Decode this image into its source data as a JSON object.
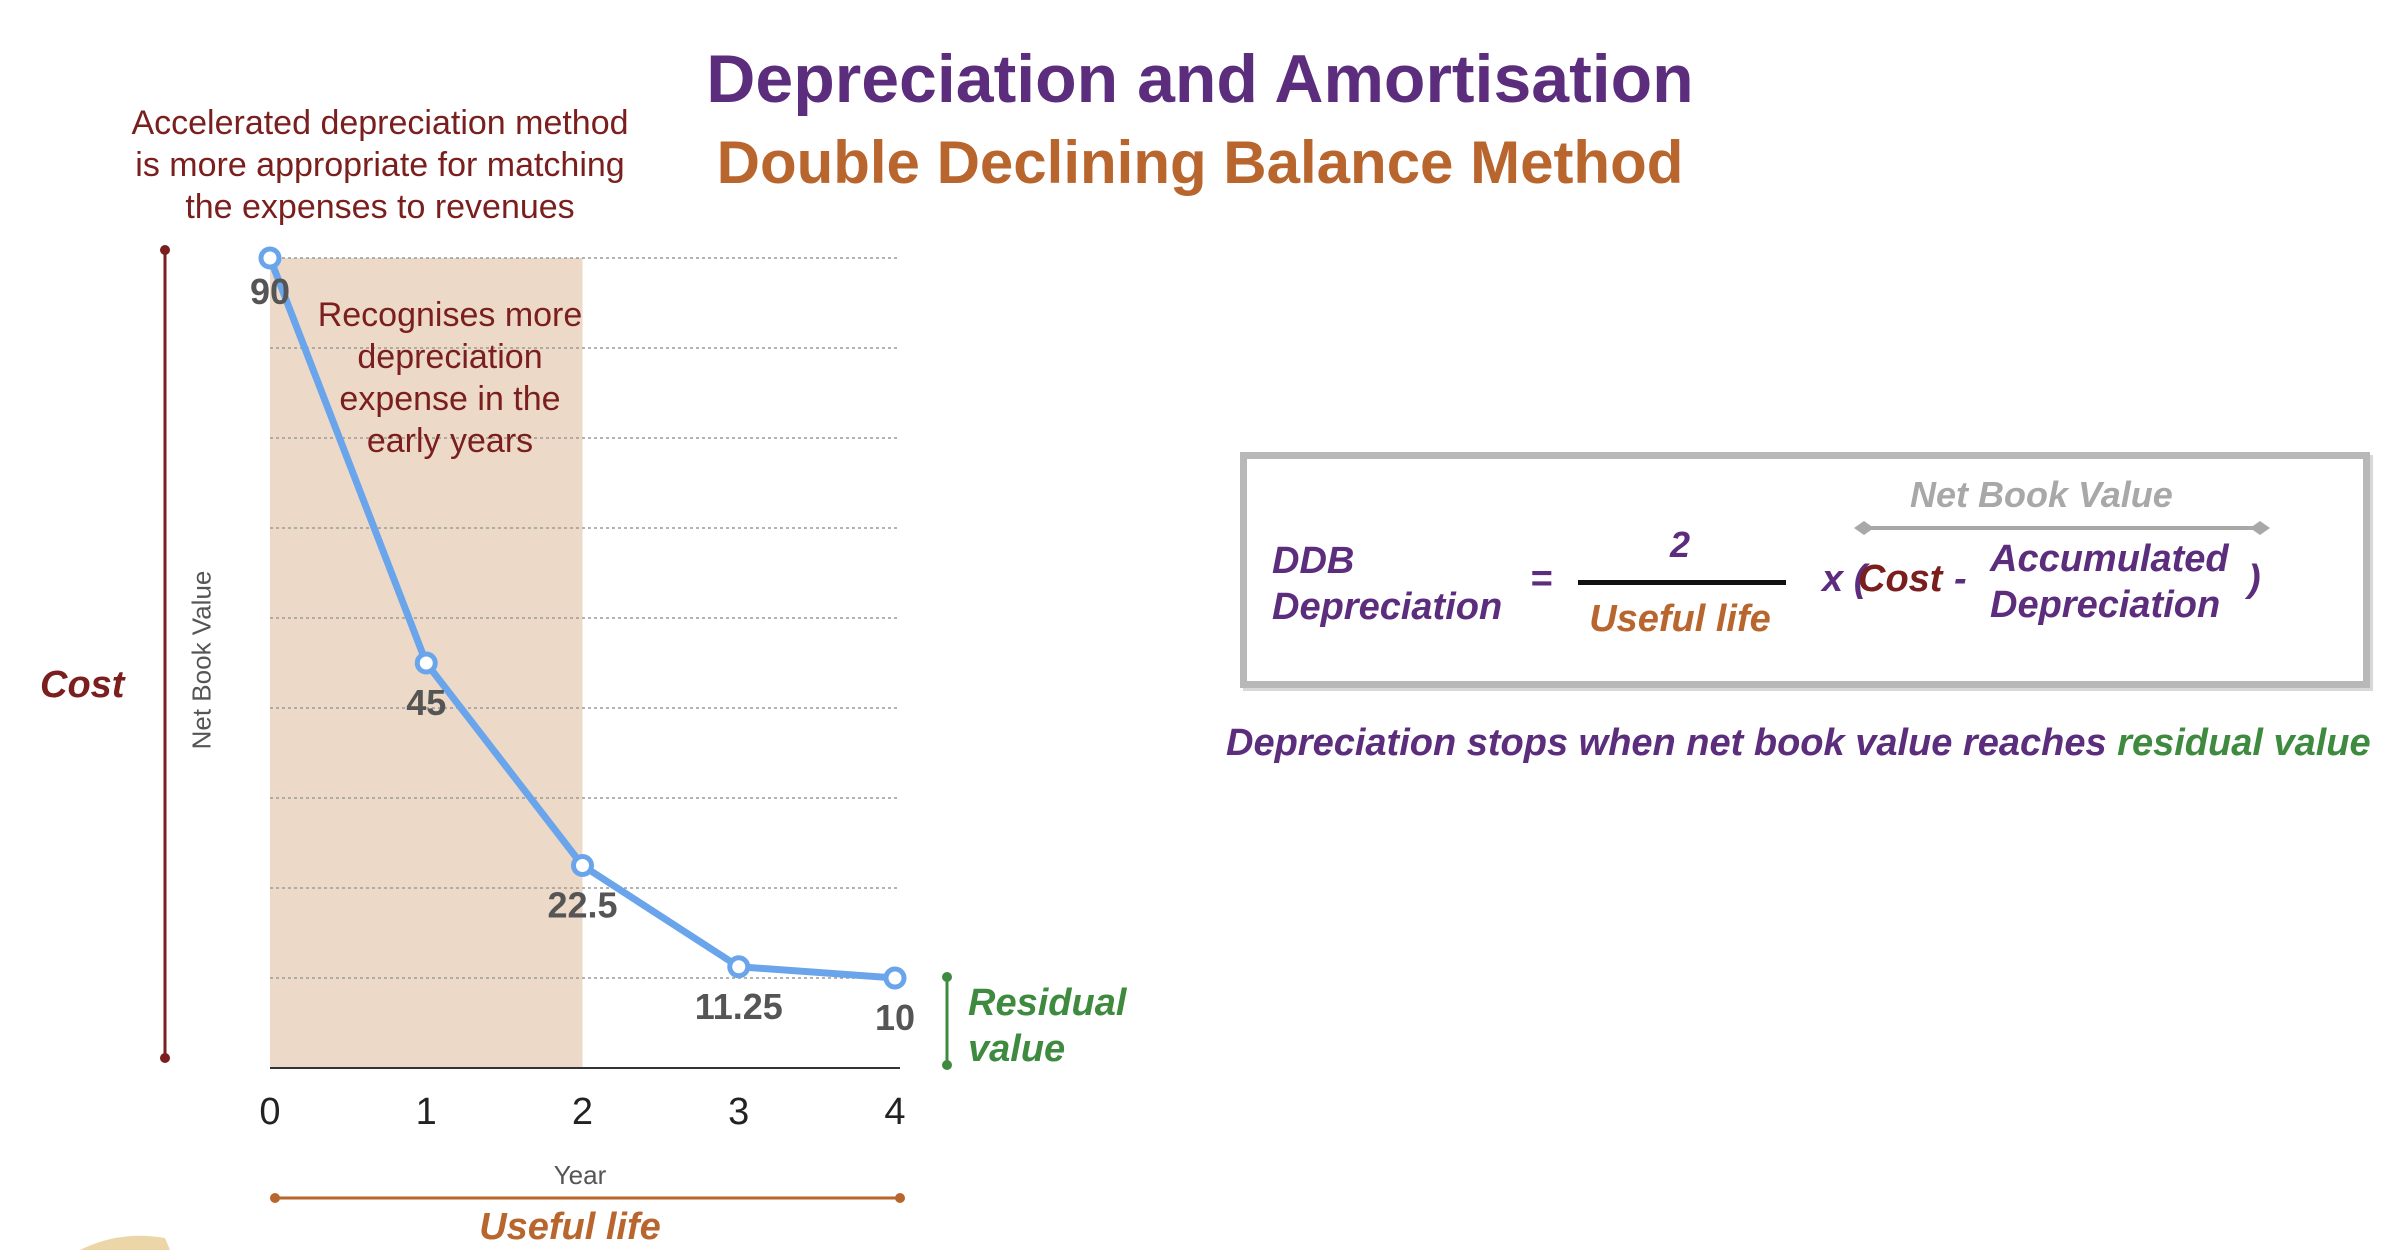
{
  "titles": {
    "main": "Depreciation and Amortisation",
    "sub": "Double Declining Balance Method"
  },
  "colors": {
    "purple": "#5b2d7c",
    "orange": "#b8652e",
    "maroon": "#7a1e1e",
    "green": "#3e8a3e",
    "line": "#6aa5ec",
    "shade": "#ecd9c8",
    "grey": "#a8a8a8"
  },
  "annotations": {
    "top_note": [
      "Accelerated depreciation method",
      "is more appropriate for matching",
      "the expenses to revenues"
    ],
    "shaded_note": [
      "Recognises more",
      "depreciation",
      "expense in the",
      "early years"
    ],
    "cost": "Cost",
    "residual": [
      "Residual",
      "value"
    ],
    "useful_life": "Useful life"
  },
  "chart_data": {
    "type": "line",
    "x": [
      0,
      1,
      2,
      3,
      4
    ],
    "values": [
      90,
      45,
      22.5,
      11.25,
      10
    ],
    "data_labels": [
      "90",
      "45",
      "22.5",
      "11.25",
      "10"
    ],
    "tick_labels": [
      "0",
      "1",
      "2",
      "3",
      "4"
    ],
    "xlabel": "Year",
    "ylabel": "Net Book Value",
    "ylim": [
      0,
      90
    ],
    "xlim": [
      0,
      4
    ],
    "grid": "horizontal dotted",
    "shaded_range": [
      0,
      2
    ]
  },
  "formula": {
    "ddb": [
      "DDB",
      "Depreciation"
    ],
    "equals": "=",
    "numerator": "2",
    "denominator": "Useful life",
    "times": "x (",
    "cost": "Cost",
    "minus": "-",
    "accumulated": [
      "Accumulated",
      "Depreciation"
    ],
    "close": ")",
    "nbv_label": "Net Book Value"
  },
  "stop_note": {
    "prefix": "Depreciation stops when net book value reaches ",
    "highlight": "residual value"
  }
}
